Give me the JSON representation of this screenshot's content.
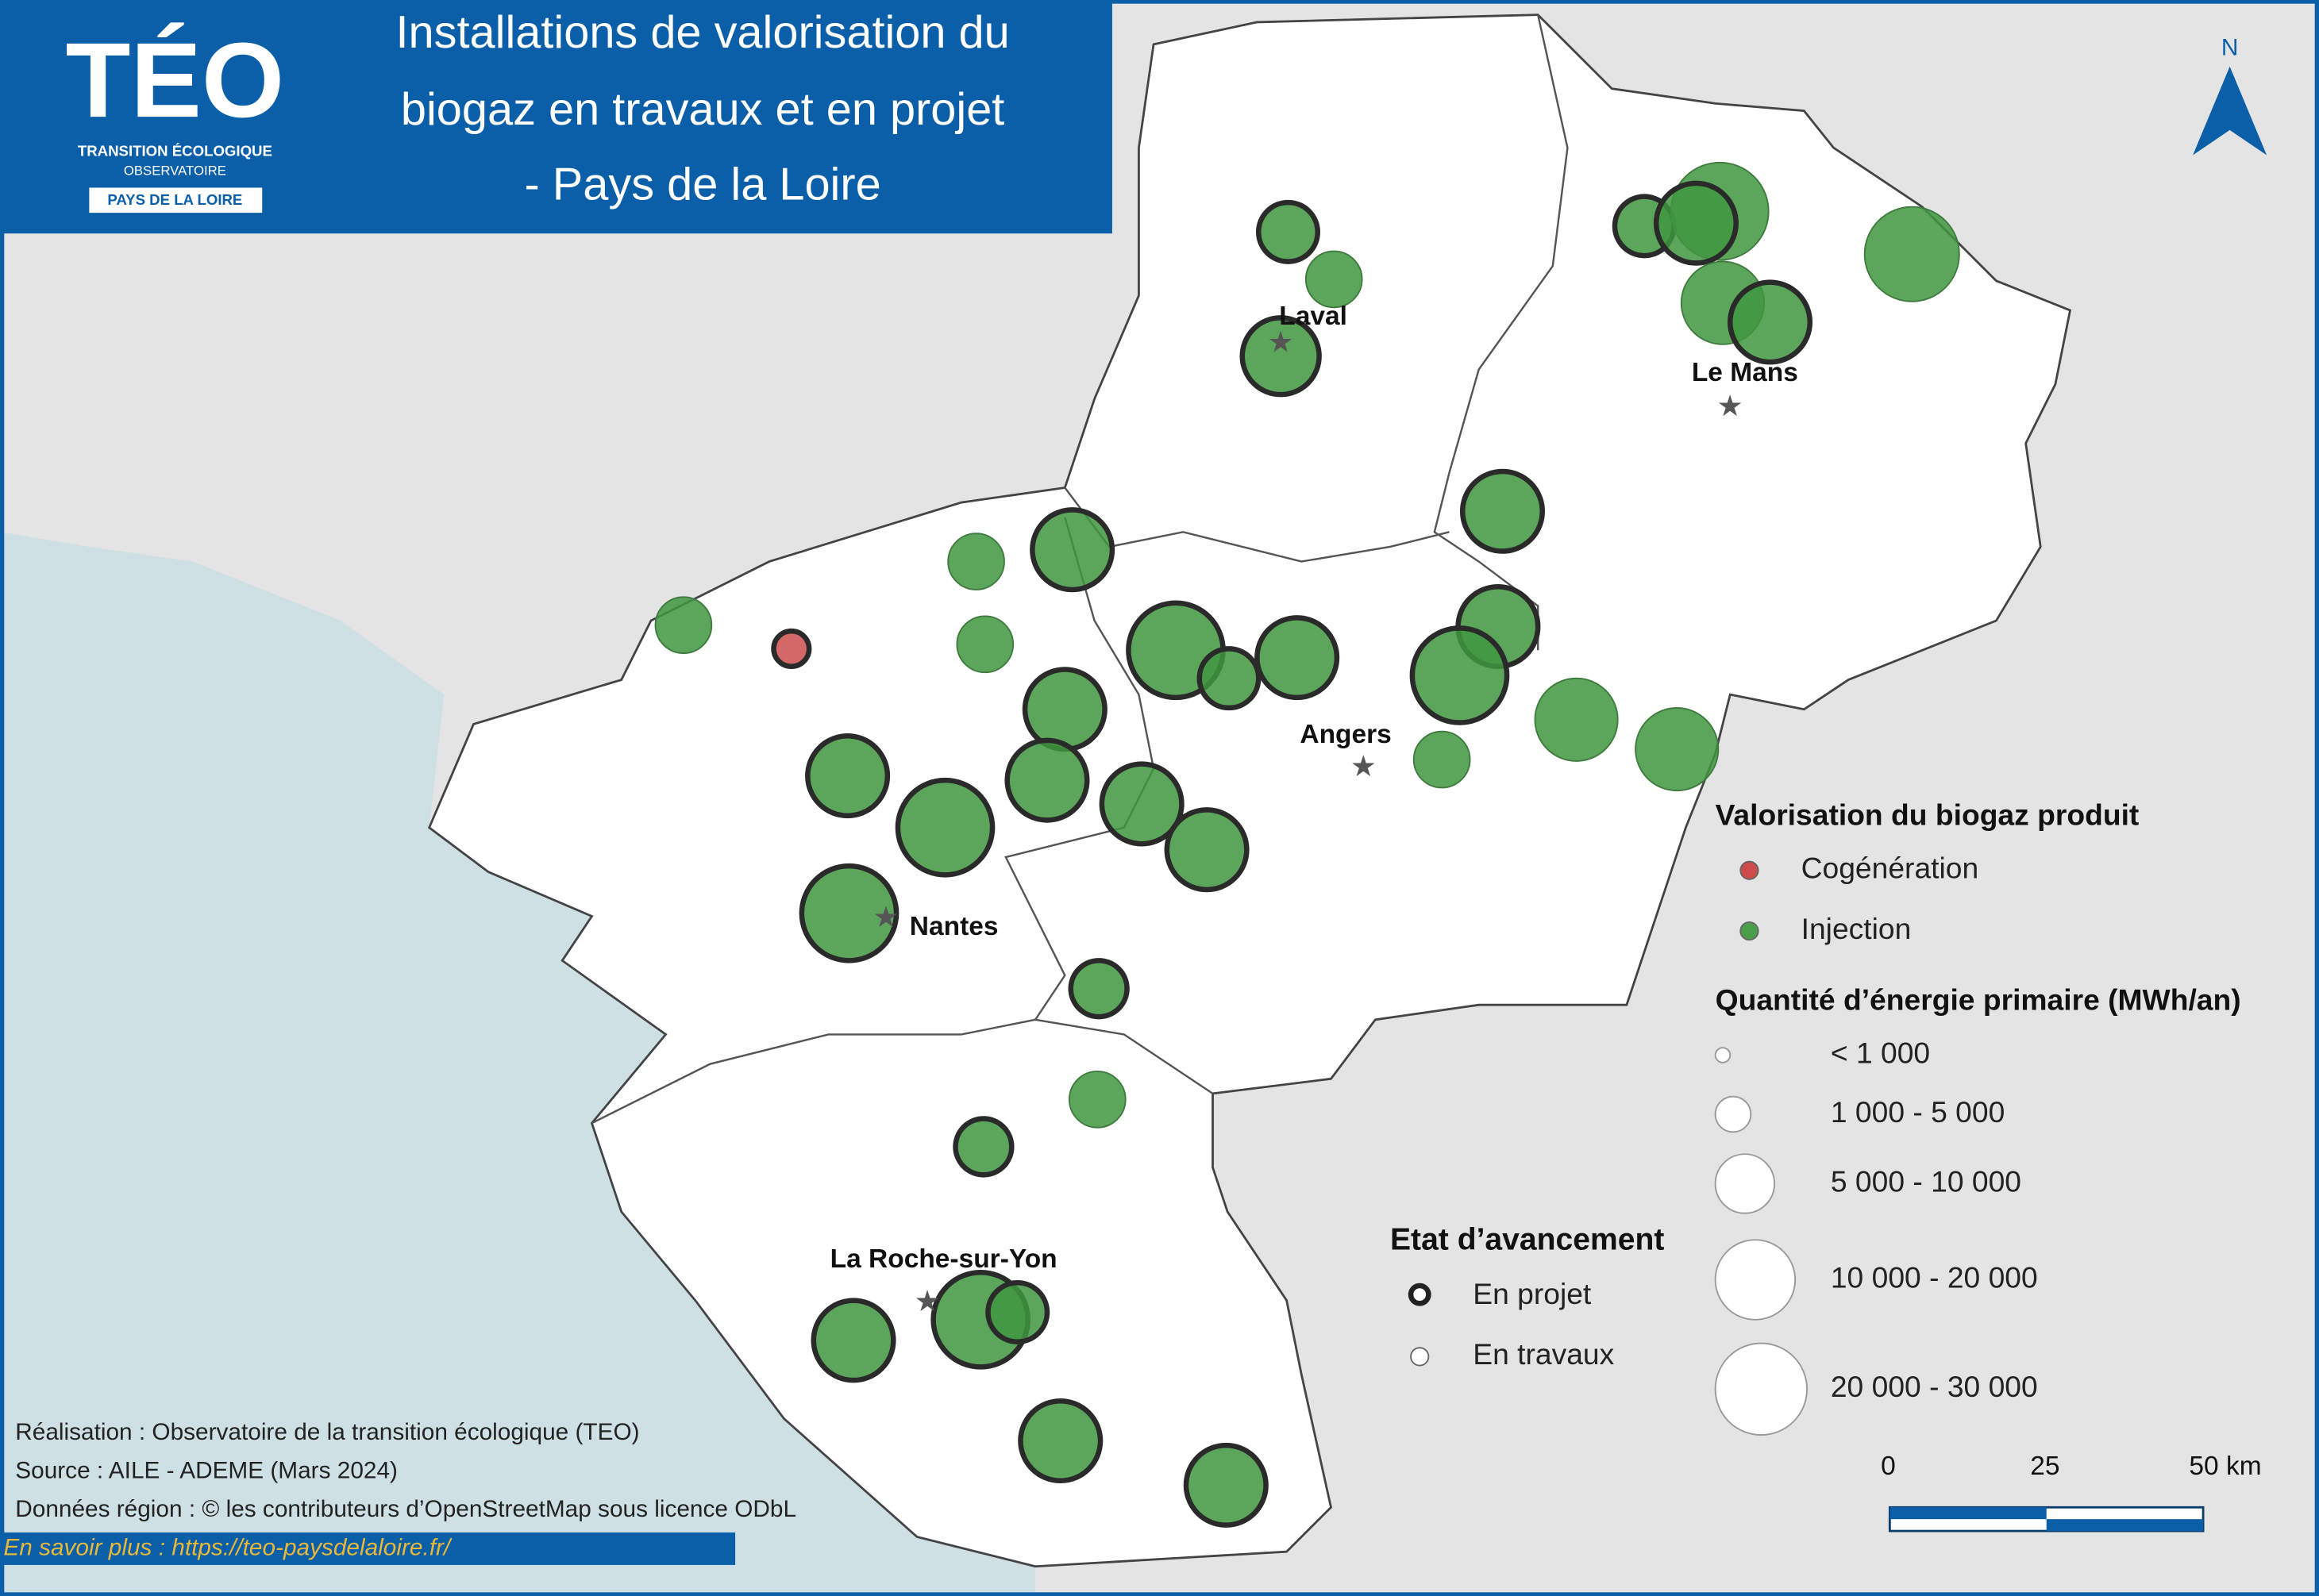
{
  "header": {
    "logo": {
      "name": "TÉO",
      "subtitle_1": "TRANSITION ÉCOLOGIQUE",
      "subtitle_2": "OBSERVATOIRE",
      "region": "PAYS DE LA LOIRE"
    },
    "title_lines": [
      "Installations de valorisation du",
      "biogaz en travaux et en projet",
      "- Pays de la Loire"
    ]
  },
  "map": {
    "north": "N",
    "cities": [
      "Laval",
      "Le Mans",
      "Angers",
      "Nantes",
      "La Roche-sur-Yon"
    ]
  },
  "legend": {
    "valorisation": {
      "title": "Valorisation du biogaz produit",
      "items": [
        "Cogénération",
        "Injection"
      ]
    },
    "energy": {
      "title": "Quantité d’énergie primaire (MWh/an)",
      "classes": [
        "< 1 000",
        "1 000 - 5 000",
        "5 000 -  10 000",
        "10 000 -  20 000",
        "20 000 -  30 000"
      ]
    },
    "status": {
      "title": "Etat d’avancement",
      "items": [
        "En projet",
        "En travaux"
      ]
    }
  },
  "scale_bar": {
    "labels": [
      "0",
      "25",
      "50 km"
    ]
  },
  "credits": [
    "Réalisation : Observatoire de la transition écologique (TEO)",
    "Source : AILE - ADEME (Mars 2024)",
    "Données région : © les contributeurs d’OpenStreetMap sous licence ODbL"
  ],
  "link": "En savoir plus : https://teo-paysdelaloire.fr/"
}
